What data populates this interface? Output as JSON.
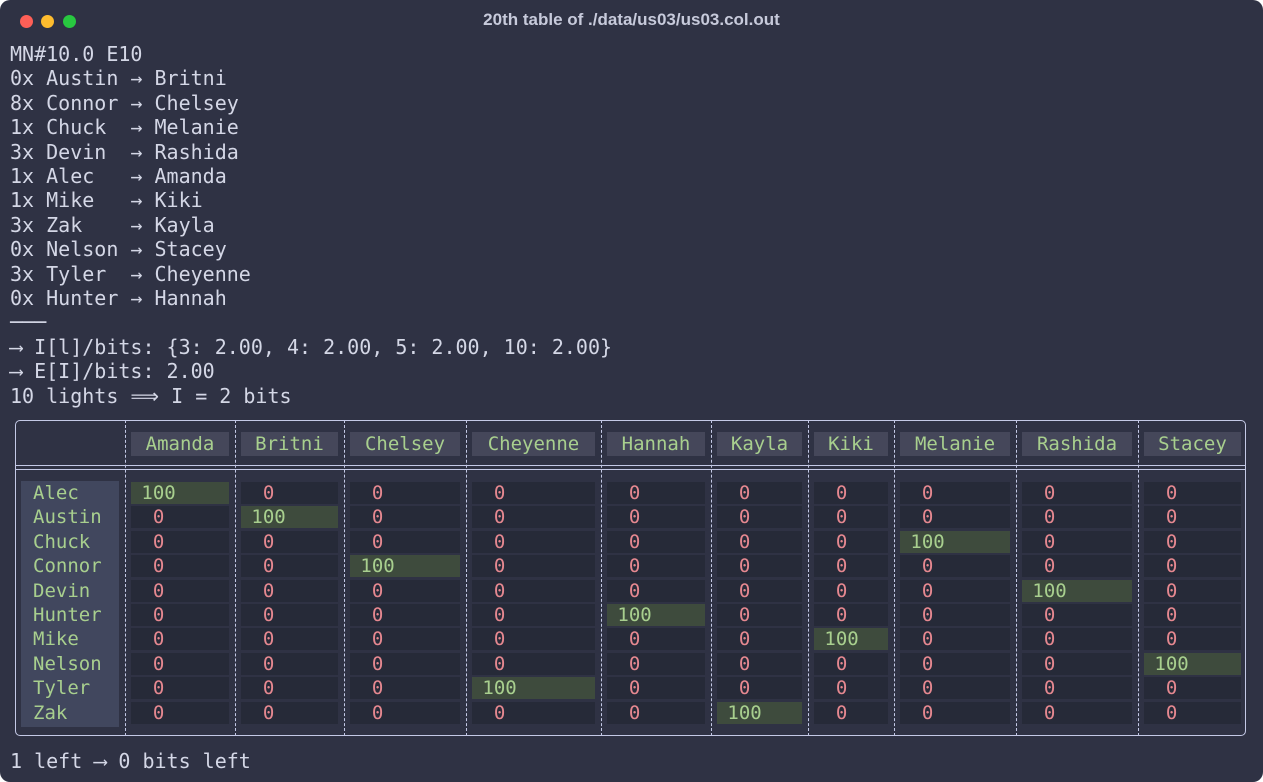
{
  "window": {
    "title": "20th table of ./data/us03/us03.col.out"
  },
  "lines": [
    "MN#10.0 E10",
    "0x Austin → Britni",
    "8x Connor → Chelsey",
    "1x Chuck  → Melanie",
    "3x Devin  → Rashida",
    "1x Alec   → Amanda",
    "1x Mike   → Kiki",
    "3x Zak    → Kayla",
    "0x Nelson → Stacey",
    "3x Tyler  → Cheyenne",
    "0x Hunter → Hannah",
    "───",
    "⟶ I[l]/bits: {3: 2.00, 4: 2.00, 5: 2.00, 10: 2.00}",
    "⟶ E[I]/bits: 2.00",
    "10 lights ⟹ I = 2 bits"
  ],
  "table": {
    "columns": [
      "Amanda",
      "Britni",
      "Chelsey",
      "Cheyenne",
      "Hannah",
      "Kayla",
      "Kiki",
      "Melanie",
      "Rashida",
      "Stacey"
    ],
    "rows": [
      {
        "name": "Alec",
        "values": [
          100,
          0,
          0,
          0,
          0,
          0,
          0,
          0,
          0,
          0
        ]
      },
      {
        "name": "Austin",
        "values": [
          0,
          100,
          0,
          0,
          0,
          0,
          0,
          0,
          0,
          0
        ]
      },
      {
        "name": "Chuck",
        "values": [
          0,
          0,
          0,
          0,
          0,
          0,
          0,
          100,
          0,
          0
        ]
      },
      {
        "name": "Connor",
        "values": [
          0,
          0,
          100,
          0,
          0,
          0,
          0,
          0,
          0,
          0
        ]
      },
      {
        "name": "Devin",
        "values": [
          0,
          0,
          0,
          0,
          0,
          0,
          0,
          0,
          100,
          0
        ]
      },
      {
        "name": "Hunter",
        "values": [
          0,
          0,
          0,
          0,
          100,
          0,
          0,
          0,
          0,
          0
        ]
      },
      {
        "name": "Mike",
        "values": [
          0,
          0,
          0,
          0,
          0,
          0,
          100,
          0,
          0,
          0
        ]
      },
      {
        "name": "Nelson",
        "values": [
          0,
          0,
          0,
          0,
          0,
          0,
          0,
          0,
          0,
          100
        ]
      },
      {
        "name": "Tyler",
        "values": [
          0,
          0,
          0,
          100,
          0,
          0,
          0,
          0,
          0,
          0
        ]
      },
      {
        "name": "Zak",
        "values": [
          0,
          0,
          0,
          0,
          0,
          100,
          0,
          0,
          0,
          0
        ]
      }
    ]
  },
  "footer": "1 left ⟶ 0 bits left"
}
